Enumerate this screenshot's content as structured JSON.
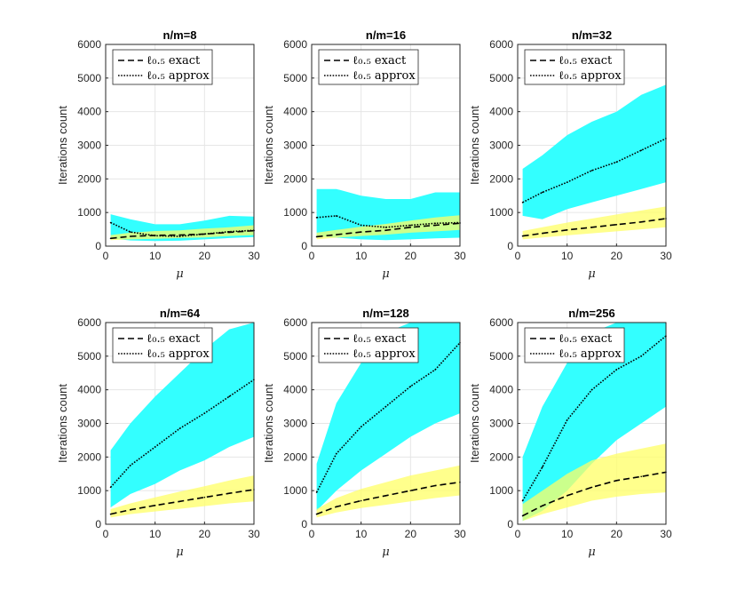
{
  "figure": {
    "caption": ""
  },
  "chart_data": [
    {
      "type": "line",
      "title": "n/m=8",
      "xlabel": "μ",
      "ylabel": "Iterations count",
      "xlim": [
        0,
        30
      ],
      "ylim": [
        0,
        6000
      ],
      "xticks": [
        0,
        10,
        20,
        30
      ],
      "yticks": [
        0,
        1000,
        2000,
        3000,
        4000,
        5000,
        6000
      ],
      "grid": true,
      "legend_position": "top-left",
      "x": [
        1,
        5,
        10,
        15,
        20,
        25,
        30
      ],
      "series": [
        {
          "name": "ℓ₀.₅ exact",
          "style": "dashed",
          "values": [
            230,
            290,
            320,
            330,
            360,
            410,
            460
          ],
          "band": {
            "color": "#ffff66",
            "lower": [
              180,
              200,
              220,
              240,
              260,
              300,
              330
            ],
            "upper": [
              330,
              400,
              450,
              470,
              520,
              560,
              620
            ]
          }
        },
        {
          "name": "ℓ₀.₅ approx",
          "style": "dotted",
          "values": [
            700,
            420,
            310,
            290,
            360,
            430,
            470
          ],
          "band": {
            "color": "#33ffff",
            "lower": [
              230,
              170,
              150,
              160,
              200,
              240,
              270
            ],
            "upper": [
              950,
              800,
              650,
              650,
              760,
              900,
              880
            ]
          }
        }
      ]
    },
    {
      "type": "line",
      "title": "n/m=16",
      "xlabel": "μ",
      "ylabel": "Iterations count",
      "xlim": [
        0,
        30
      ],
      "ylim": [
        0,
        6000
      ],
      "xticks": [
        0,
        10,
        20,
        30
      ],
      "yticks": [
        0,
        1000,
        2000,
        3000,
        4000,
        5000,
        6000
      ],
      "grid": true,
      "legend_position": "top-left",
      "x": [
        1,
        5,
        10,
        15,
        20,
        25,
        30
      ],
      "series": [
        {
          "name": "ℓ₀.₅ exact",
          "style": "dashed",
          "values": [
            280,
            340,
            420,
            470,
            560,
            620,
            680
          ],
          "band": {
            "color": "#ffff66",
            "lower": [
              200,
              250,
              300,
              340,
              400,
              440,
              480
            ],
            "upper": [
              400,
              480,
              580,
              660,
              760,
              850,
              920
            ]
          }
        },
        {
          "name": "ℓ₀.₅ approx",
          "style": "dotted",
          "values": [
            850,
            900,
            620,
            560,
            620,
            680,
            700
          ],
          "band": {
            "color": "#33ffff",
            "lower": [
              300,
              250,
              200,
              180,
              200,
              230,
              250
            ],
            "upper": [
              1700,
              1700,
              1500,
              1400,
              1400,
              1600,
              1600
            ]
          }
        }
      ]
    },
    {
      "type": "line",
      "title": "n/m=32",
      "xlabel": "μ",
      "ylabel": "Iterations count",
      "xlim": [
        0,
        30
      ],
      "ylim": [
        0,
        6000
      ],
      "xticks": [
        0,
        10,
        20,
        30
      ],
      "yticks": [
        0,
        1000,
        2000,
        3000,
        4000,
        5000,
        6000
      ],
      "grid": true,
      "legend_position": "top-left",
      "x": [
        1,
        5,
        10,
        15,
        20,
        25,
        30
      ],
      "series": [
        {
          "name": "ℓ₀.₅ exact",
          "style": "dashed",
          "values": [
            300,
            380,
            480,
            560,
            640,
            720,
            820
          ],
          "band": {
            "color": "#ffff66",
            "lower": [
              200,
              260,
              320,
              380,
              440,
              500,
              560
            ],
            "upper": [
              450,
              560,
              700,
              820,
              940,
              1060,
              1180
            ]
          }
        },
        {
          "name": "ℓ₀.₅ approx",
          "style": "dotted",
          "values": [
            1300,
            1600,
            1900,
            2250,
            2500,
            2850,
            3200
          ],
          "band": {
            "color": "#33ffff",
            "lower": [
              900,
              800,
              1100,
              1300,
              1500,
              1700,
              1900
            ],
            "upper": [
              2300,
              2700,
              3300,
              3700,
              4000,
              4500,
              4800
            ]
          }
        }
      ]
    },
    {
      "type": "line",
      "title": "n/m=64",
      "xlabel": "μ",
      "ylabel": "Iterations count",
      "xlim": [
        0,
        30
      ],
      "ylim": [
        0,
        6000
      ],
      "xticks": [
        0,
        10,
        20,
        30
      ],
      "yticks": [
        0,
        1000,
        2000,
        3000,
        4000,
        5000,
        6000
      ],
      "grid": true,
      "legend_position": "top-left",
      "x": [
        1,
        5,
        10,
        15,
        20,
        25,
        30
      ],
      "series": [
        {
          "name": "ℓ₀.₅ exact",
          "style": "dashed",
          "values": [
            300,
            430,
            560,
            680,
            800,
            920,
            1030
          ],
          "band": {
            "color": "#ffff66",
            "lower": [
              200,
              300,
              380,
              460,
              540,
              620,
              680
            ],
            "upper": [
              450,
              620,
              800,
              970,
              1130,
              1300,
              1450
            ]
          }
        },
        {
          "name": "ℓ₀.₅ approx",
          "style": "dotted",
          "values": [
            1100,
            1750,
            2300,
            2850,
            3300,
            3800,
            4300
          ],
          "band": {
            "color": "#33ffff",
            "lower": [
              500,
              900,
              1200,
              1600,
              1900,
              2300,
              2600
            ],
            "upper": [
              2200,
              3000,
              3800,
              4500,
              5200,
              5800,
              6000
            ]
          }
        }
      ]
    },
    {
      "type": "line",
      "title": "n/m=128",
      "xlabel": "μ",
      "ylabel": "Iterations count",
      "xlim": [
        0,
        30
      ],
      "ylim": [
        0,
        6000
      ],
      "xticks": [
        0,
        10,
        20,
        30
      ],
      "yticks": [
        0,
        1000,
        2000,
        3000,
        4000,
        5000,
        6000
      ],
      "grid": true,
      "legend_position": "top-left",
      "x": [
        1,
        5,
        10,
        15,
        20,
        25,
        30
      ],
      "series": [
        {
          "name": "ℓ₀.₅ exact",
          "style": "dashed",
          "values": [
            300,
            520,
            700,
            850,
            1000,
            1150,
            1250
          ],
          "band": {
            "color": "#ffff66",
            "lower": [
              200,
              350,
              480,
              580,
              680,
              780,
              860
            ],
            "upper": [
              450,
              780,
              1050,
              1250,
              1450,
              1600,
              1750
            ]
          }
        },
        {
          "name": "ℓ₀.₅ approx",
          "style": "dotted",
          "values": [
            950,
            2100,
            2900,
            3500,
            4100,
            4600,
            5400
          ],
          "band": {
            "color": "#33ffff",
            "lower": [
              400,
              1000,
              1600,
              2100,
              2600,
              3000,
              3300
            ],
            "upper": [
              1800,
              3600,
              4800,
              5700,
              6000,
              6000,
              6000
            ]
          }
        }
      ]
    },
    {
      "type": "line",
      "title": "n/m=256",
      "xlabel": "μ",
      "ylabel": "Iterations count",
      "xlim": [
        0,
        30
      ],
      "ylim": [
        0,
        6000
      ],
      "xticks": [
        0,
        10,
        20,
        30
      ],
      "yticks": [
        0,
        1000,
        2000,
        3000,
        4000,
        5000,
        6000
      ],
      "grid": true,
      "legend_position": "top-left",
      "x": [
        1,
        5,
        10,
        15,
        20,
        25,
        30
      ],
      "series": [
        {
          "name": "ℓ₀.₅ exact",
          "style": "dashed",
          "values": [
            250,
            550,
            850,
            1100,
            1300,
            1420,
            1550
          ],
          "band": {
            "color": "#ffff66",
            "lower": [
              100,
              300,
              500,
              700,
              820,
              900,
              950
            ],
            "upper": [
              600,
              1000,
              1500,
              1900,
              2100,
              2250,
              2400
            ]
          }
        },
        {
          "name": "ℓ₀.₅ approx",
          "style": "dotted",
          "values": [
            700,
            1700,
            3100,
            4000,
            4600,
            5000,
            5600
          ],
          "band": {
            "color": "#33ffff",
            "lower": [
              100,
              400,
              1000,
              1800,
              2500,
              3000,
              3500
            ],
            "upper": [
              2000,
              3500,
              4800,
              5700,
              6000,
              6000,
              6000
            ]
          }
        }
      ]
    }
  ]
}
